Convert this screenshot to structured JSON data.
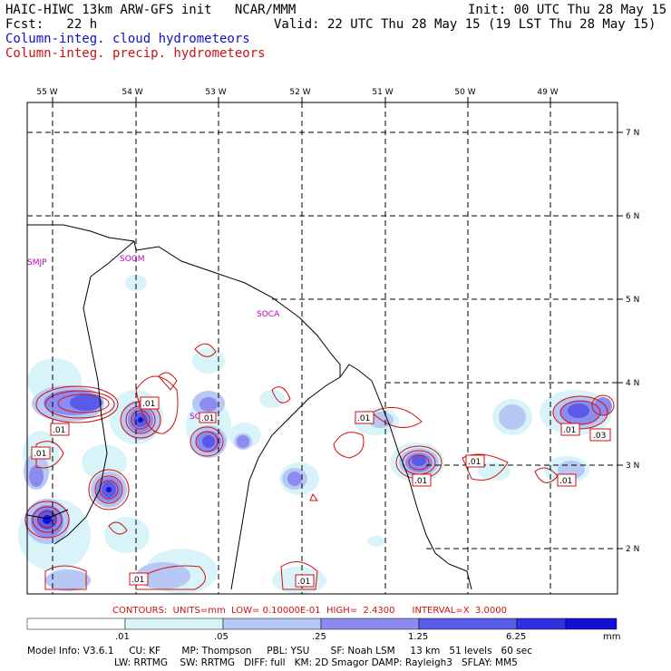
{
  "header": {
    "title": "HAIC-HIWC 13km ARW-GFS init   NCAR/MMM",
    "init": "Init: 00 UTC Thu 28 May 15",
    "fcst": "Fcst:   22 h",
    "valid": "Valid: 22 UTC Thu 28 May 15 (19 LST Thu 28 May 15)",
    "legend_cloud": "Column-integ. cloud hydrometeors",
    "legend_precip": "Column-integ. precip. hydrometeors",
    "cloud_color": "#1010c8",
    "precip_color": "#d01010"
  },
  "map": {
    "lon_labels": [
      "55 W",
      "54 W",
      "53 W",
      "52 W",
      "51 W",
      "50 W",
      "49 W"
    ],
    "lat_labels": [
      "7 N",
      "6 N",
      "5 N",
      "4 N",
      "3 N",
      "2 N"
    ],
    "station_labels": [
      "SMJP",
      "SOGM",
      "SOCA",
      "SOOH"
    ],
    "station_color": "#c000c0",
    "contour_labels": [
      ".01",
      ".01",
      ".01",
      ".01",
      ".01",
      ".01",
      ".01",
      ".01",
      ".01",
      ".01",
      ".03",
      ".01"
    ]
  },
  "contour_info": "CONTOURS:  UNITS=mm  LOW= 0.10000E-01  HIGH=  2.4300      INTERVAL=X  3.0000",
  "colorbar": {
    "tick_labels": [
      ".01",
      ".05",
      ".25",
      "1.25",
      "6.25"
    ],
    "units": "mm",
    "colors": [
      "#ffffff",
      "#d8f4f8",
      "#b8c8f4",
      "#8c8cf0",
      "#5a5ae8",
      "#3030e0",
      "#1010d8"
    ]
  },
  "model_info": {
    "line1": "Model Info: V3.6.1     CU: KF       MP: Thompson     PBL: YSU       SF: Noah LSM     13 km   51 levels   60 sec",
    "line2": "LW: RRTMG    SW: RRTMG   DIFF: full   KM: 2D Smagor DAMP: Rayleigh3   SFLAY: MM5"
  }
}
